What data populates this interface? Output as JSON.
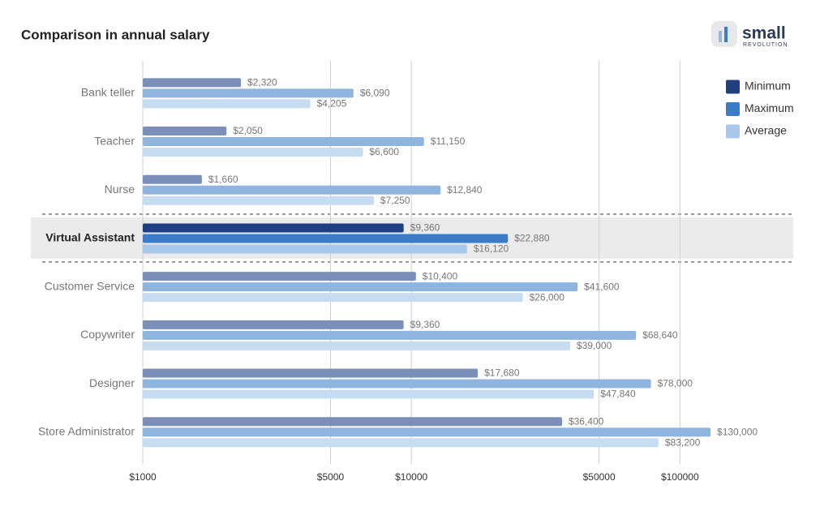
{
  "logo": {
    "name": "small",
    "tagline": "REVOLUTION"
  },
  "chart_data": {
    "type": "bar",
    "orientation": "horizontal",
    "title": "Comparison in annual salary",
    "categories": [
      "Bank teller",
      "Teacher",
      "Nurse",
      "Virtual Assistant",
      "Customer Service",
      "Copywriter",
      "Designer",
      "Store Administrator"
    ],
    "highlight": "Virtual Assistant",
    "series": [
      {
        "name": "Minimum",
        "color": "#1f3f80",
        "muted_color": "#7b8fb8",
        "values": [
          2320,
          2050,
          1660,
          9360,
          10400,
          9360,
          17680,
          36400
        ],
        "value_labels": [
          "$2,320",
          "$2,050",
          "$1,660",
          "$9,360",
          "$10,400",
          "$9,360",
          "$17,680",
          "$36,400"
        ]
      },
      {
        "name": "Maximum",
        "color": "#3b7cc9",
        "muted_color": "#8fb5df",
        "values": [
          6090,
          11150,
          12840,
          22880,
          41600,
          68640,
          78000,
          130000
        ],
        "value_labels": [
          "$6,090",
          "$11,150",
          "$12,840",
          "$22,880",
          "$41,600",
          "$68,640",
          "$78,000",
          "$130,000"
        ]
      },
      {
        "name": "Average",
        "color": "#a7c8ea",
        "muted_color": "#c6dcf1",
        "values": [
          4205,
          6600,
          7250,
          16120,
          26000,
          39000,
          47840,
          83200
        ],
        "value_labels": [
          "$4,205",
          "$6,600",
          "$7,250",
          "$16,120",
          "$26,000",
          "$39,000",
          "$47,840",
          "$83,200"
        ]
      }
    ],
    "xscale": "log",
    "xlim": [
      1000,
      200000
    ],
    "xticks": [
      {
        "value": 1000,
        "label": "$1000"
      },
      {
        "value": 5000,
        "label": "$5000"
      },
      {
        "value": 10000,
        "label": "$10000"
      },
      {
        "value": 50000,
        "label": "$50000"
      },
      {
        "value": 100000,
        "label": "$100000"
      }
    ],
    "grid": true,
    "legend": "top-right"
  }
}
